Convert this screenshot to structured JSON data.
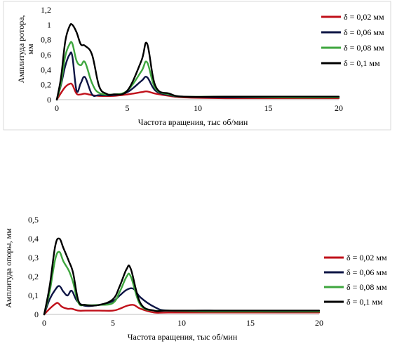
{
  "chart_data": [
    {
      "type": "line",
      "title": "",
      "xlabel": "Частота вращения, тыс об/мин",
      "ylabel": "Амплитуда ротора, мм",
      "xlim": [
        0,
        20
      ],
      "ylim": [
        0,
        1.2
      ],
      "xticks": [
        0,
        5,
        10,
        15,
        20
      ],
      "yticks": [
        "0",
        "0,2",
        "0,4",
        "0,6",
        "0,8",
        "1",
        "1,2"
      ],
      "grid": false,
      "legend": "right",
      "series": [
        {
          "name": "δ = 0,02 мм",
          "color": "#c0101a",
          "x": [
            0,
            0.3,
            0.6,
            0.9,
            1.1,
            1.4,
            1.7,
            2.0,
            2.5,
            3,
            4,
            5,
            6,
            6.4,
            7,
            8,
            9,
            12,
            16,
            20
          ],
          "y": [
            0,
            0.09,
            0.17,
            0.21,
            0.2,
            0.08,
            0.07,
            0.08,
            0.06,
            0.05,
            0.05,
            0.07,
            0.1,
            0.11,
            0.08,
            0.05,
            0.03,
            0.02,
            0.02,
            0.02
          ]
        },
        {
          "name": "δ = 0,06 мм",
          "color": "#0d1444",
          "x": [
            0,
            0.3,
            0.6,
            0.9,
            1.1,
            1.4,
            1.7,
            2.0,
            2.5,
            3,
            4,
            5,
            6,
            6.4,
            7,
            8,
            9,
            12,
            16,
            20
          ],
          "y": [
            0,
            0.2,
            0.45,
            0.6,
            0.58,
            0.12,
            0.22,
            0.3,
            0.07,
            0.06,
            0.06,
            0.1,
            0.25,
            0.3,
            0.12,
            0.06,
            0.04,
            0.03,
            0.03,
            0.03
          ]
        },
        {
          "name": "δ = 0,08 мм",
          "color": "#3ea63e",
          "x": [
            0,
            0.3,
            0.6,
            0.9,
            1.1,
            1.4,
            1.7,
            2.0,
            2.5,
            3,
            4,
            5,
            6,
            6.4,
            7,
            8,
            9,
            12,
            16,
            20
          ],
          "y": [
            0,
            0.22,
            0.58,
            0.74,
            0.75,
            0.52,
            0.46,
            0.5,
            0.22,
            0.09,
            0.07,
            0.12,
            0.38,
            0.5,
            0.15,
            0.07,
            0.04,
            0.04,
            0.03,
            0.03
          ]
        },
        {
          "name": "δ = 0,1 мм",
          "color": "#000000",
          "x": [
            0,
            0.3,
            0.6,
            0.9,
            1.1,
            1.4,
            1.7,
            2.0,
            2.5,
            3,
            3.5,
            4,
            5,
            6,
            6.4,
            7,
            8,
            9,
            12,
            16,
            20
          ],
          "y": [
            0,
            0.3,
            0.78,
            0.98,
            1.0,
            0.9,
            0.74,
            0.72,
            0.6,
            0.18,
            0.08,
            0.07,
            0.12,
            0.52,
            0.75,
            0.18,
            0.08,
            0.04,
            0.04,
            0.04,
            0.04
          ]
        }
      ]
    },
    {
      "type": "line",
      "title": "",
      "xlabel": "Частота вращения, тыс об/мин",
      "ylabel": "Амплитуда опоры, мм",
      "xlim": [
        0,
        20
      ],
      "ylim": [
        0,
        0.5
      ],
      "xticks": [
        0,
        5,
        10,
        15,
        20
      ],
      "yticks": [
        "0",
        "0,1",
        "0,2",
        "0,3",
        "0,4",
        "0,5"
      ],
      "grid": false,
      "legend": "right",
      "series": [
        {
          "name": "δ = 0,02 мм",
          "color": "#c0101a",
          "x": [
            0,
            0.4,
            0.8,
            1.0,
            1.3,
            1.7,
            2.0,
            2.5,
            3,
            4,
            5,
            5.5,
            6.0,
            6.5,
            7,
            8,
            9,
            12,
            16,
            20
          ],
          "y": [
            0,
            0.03,
            0.055,
            0.06,
            0.04,
            0.03,
            0.03,
            0.02,
            0.02,
            0.02,
            0.02,
            0.03,
            0.045,
            0.05,
            0.03,
            0.01,
            0.01,
            0.01,
            0.01,
            0.01
          ]
        },
        {
          "name": "δ = 0,06 мм",
          "color": "#0d1444",
          "x": [
            0,
            0.4,
            0.8,
            1.1,
            1.4,
            1.7,
            2.0,
            2.4,
            3,
            4,
            5,
            5.5,
            6.0,
            6.5,
            7,
            8,
            9,
            12,
            16,
            20
          ],
          "y": [
            0,
            0.08,
            0.13,
            0.15,
            0.12,
            0.1,
            0.125,
            0.07,
            0.045,
            0.05,
            0.07,
            0.1,
            0.13,
            0.135,
            0.09,
            0.04,
            0.02,
            0.02,
            0.015,
            0.015
          ]
        },
        {
          "name": "δ = 0,08 мм",
          "color": "#3ea63e",
          "x": [
            0,
            0.4,
            0.8,
            1.1,
            1.4,
            1.8,
            2.1,
            2.5,
            3,
            4,
            5,
            5.5,
            6.0,
            6.3,
            7,
            8,
            9,
            12,
            16,
            20
          ],
          "y": [
            0,
            0.12,
            0.29,
            0.33,
            0.28,
            0.23,
            0.17,
            0.06,
            0.05,
            0.05,
            0.06,
            0.12,
            0.2,
            0.2,
            0.05,
            0.02,
            0.02,
            0.015,
            0.015,
            0.015
          ]
        },
        {
          "name": "δ = 0,1 мм",
          "color": "#000000",
          "x": [
            0,
            0.4,
            0.8,
            1.1,
            1.4,
            1.8,
            2.1,
            2.5,
            3,
            4,
            5,
            5.5,
            6.0,
            6.3,
            7,
            8,
            9,
            12,
            16,
            20
          ],
          "y": [
            0,
            0.15,
            0.36,
            0.4,
            0.35,
            0.28,
            0.22,
            0.07,
            0.05,
            0.05,
            0.08,
            0.15,
            0.24,
            0.24,
            0.06,
            0.02,
            0.02,
            0.02,
            0.02,
            0.02
          ]
        }
      ]
    }
  ]
}
